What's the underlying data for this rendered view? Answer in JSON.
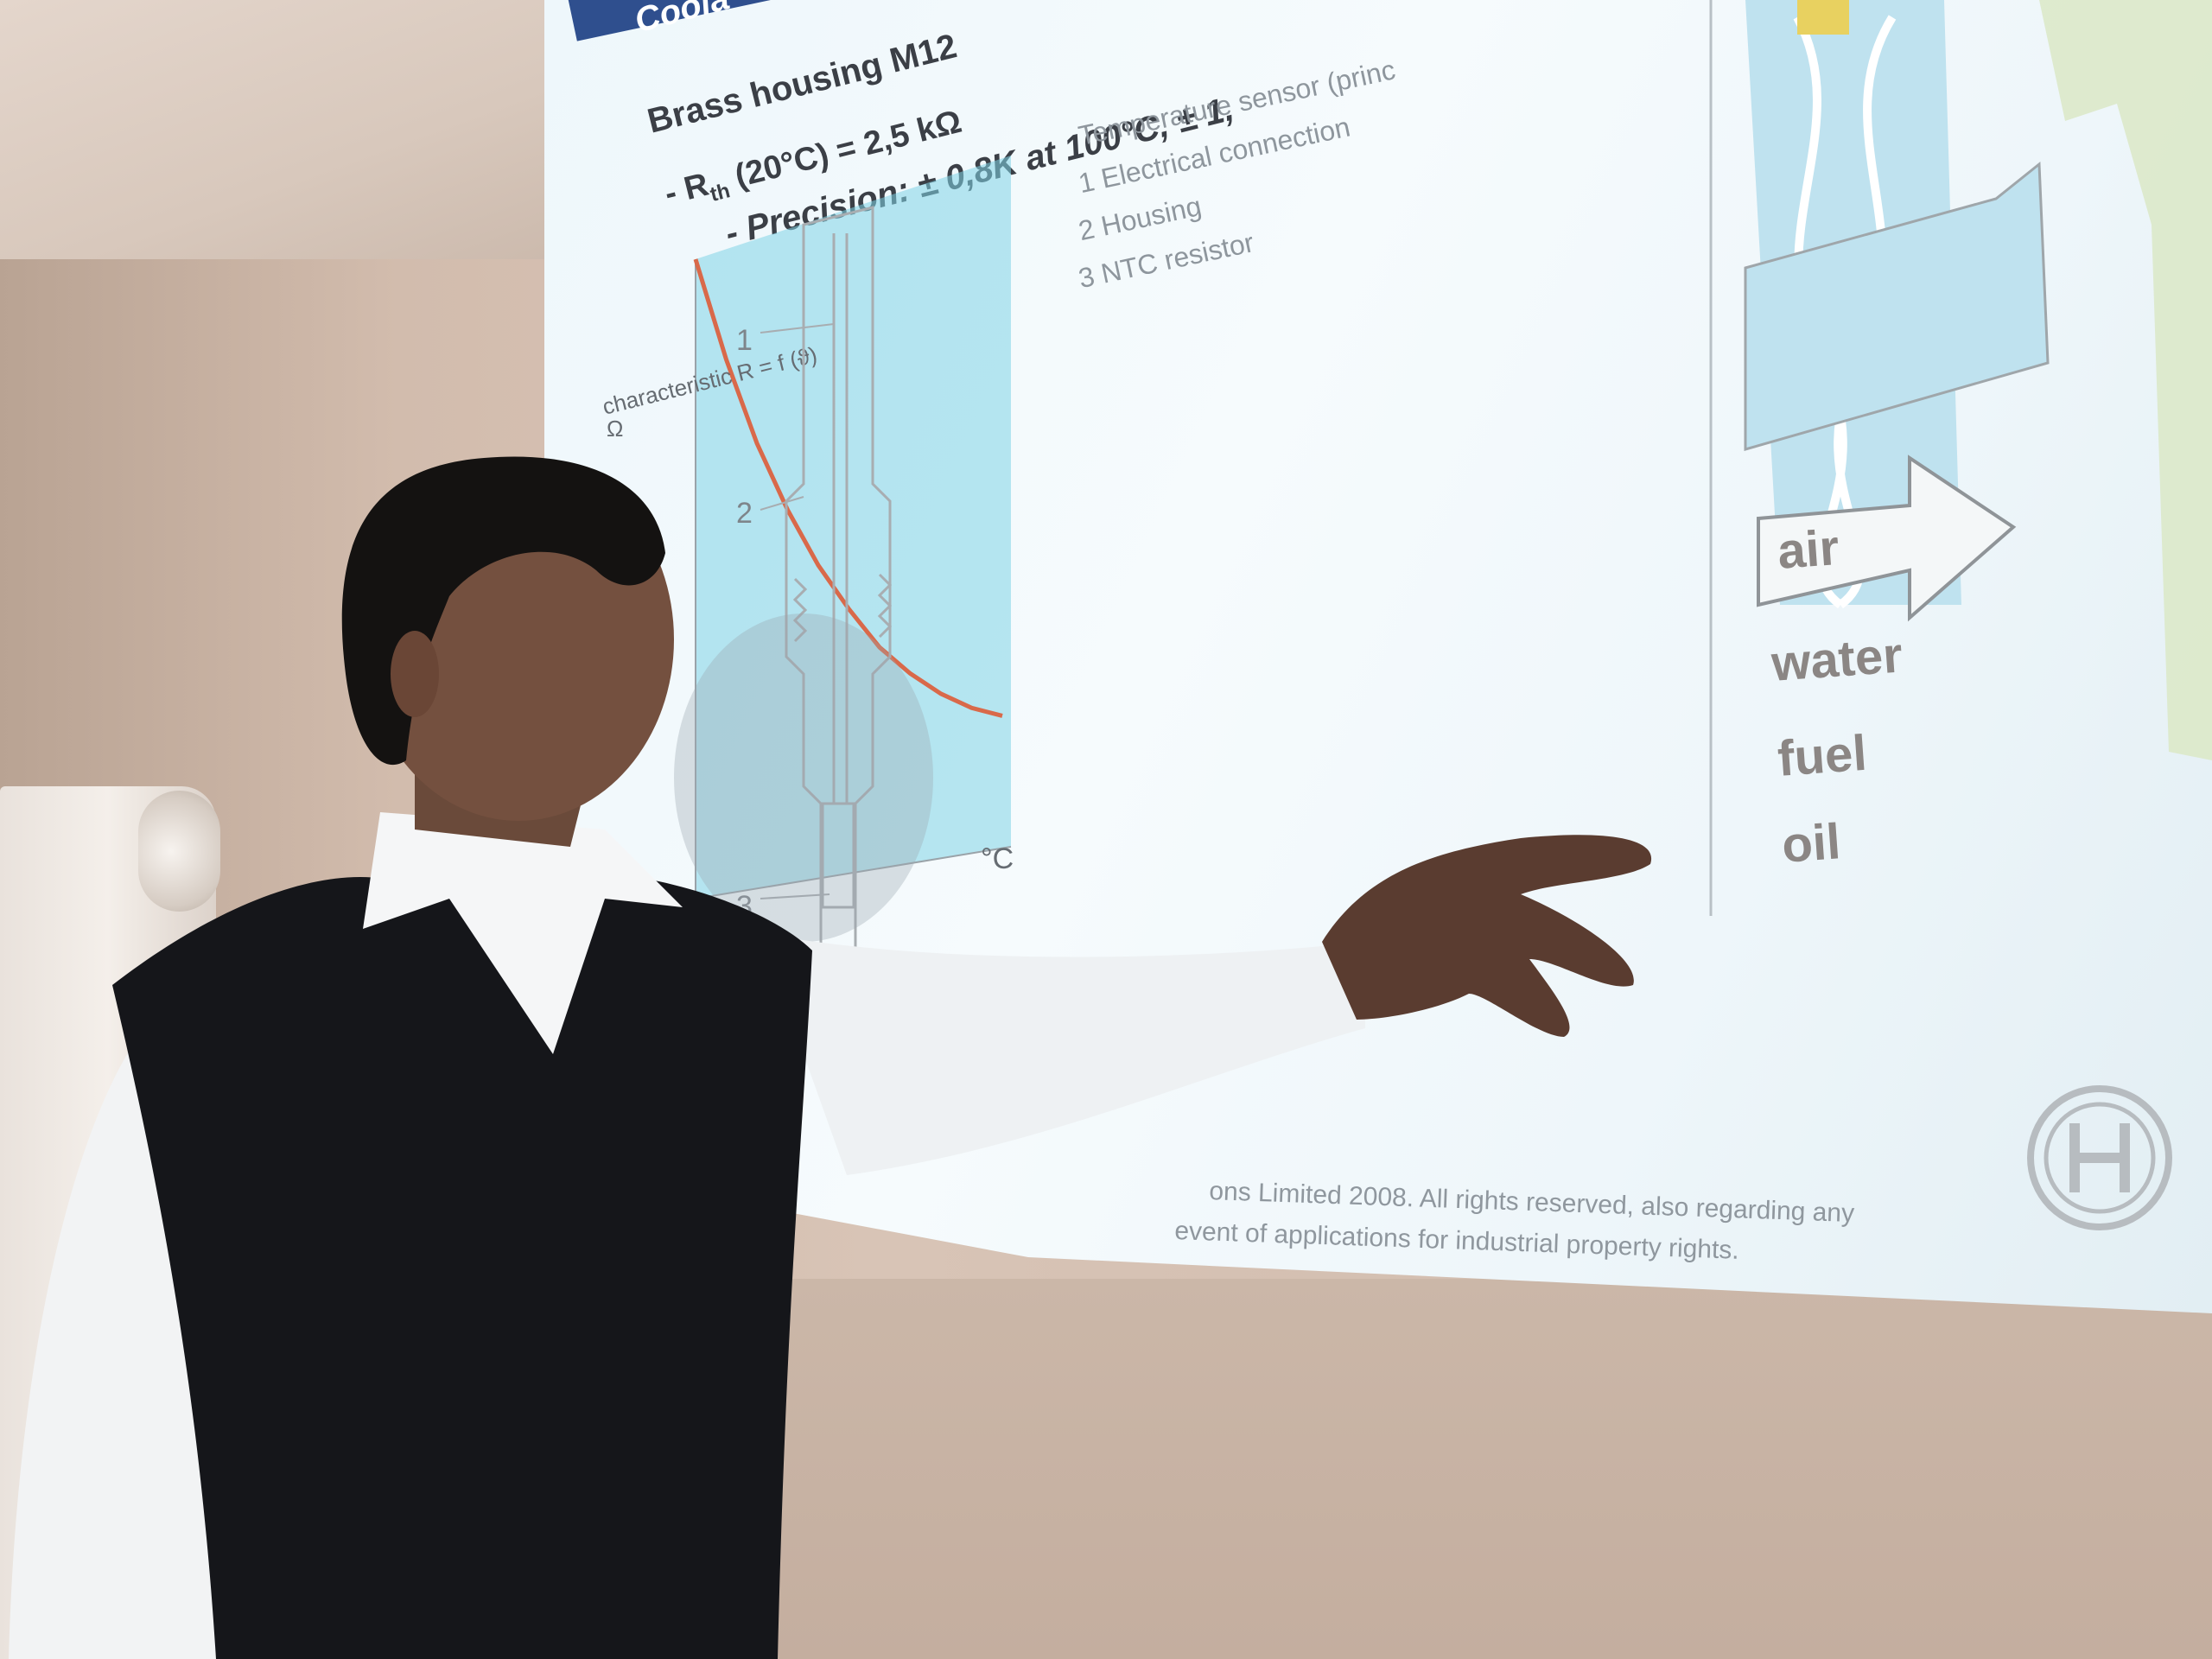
{
  "slide": {
    "title": "Coola",
    "bullets": [
      "Brass housing M12",
      "- R",
      "th",
      " (20°C) = 2,5 kΩ",
      "- Precision: ± 0,8K at 100°C, ± 1,"
    ],
    "chart": {
      "label": "characteristic R = f (ϑ)",
      "y_unit": "Ω",
      "x_unit": "°C"
    },
    "chart_data": {
      "type": "line",
      "title": "characteristic R = f (ϑ)",
      "xlabel": "°C",
      "ylabel": "Ω",
      "series": [
        {
          "name": "",
          "x": [
            0,
            0.1,
            0.2,
            0.3,
            0.4,
            0.5,
            0.6,
            0.7,
            0.8,
            0.9,
            1.0
          ],
          "values": [
            1.0,
            0.82,
            0.67,
            0.55,
            0.45,
            0.37,
            0.3,
            0.25,
            0.21,
            0.18,
            0.16
          ]
        }
      ]
    },
    "legend": {
      "heading": "Temperature sensor (princ",
      "items": [
        "1 Electrical connection",
        "2 Housing",
        "3 NTC resistor"
      ]
    },
    "callouts": [
      "1",
      "2",
      "3"
    ],
    "media": [
      "air",
      "water",
      "fuel",
      "oil"
    ],
    "footer": [
      "ons Limited 2008. All rights reserved, also regarding any",
      "event of applications for industrial property rights."
    ],
    "colors": {
      "title_bar": "#2f4f8e",
      "chart_fill": "#7fd3e6",
      "curve": "#d9694a",
      "diagram_fill": "#dbe9c9",
      "diagram_blue": "#bfe2ef"
    }
  }
}
